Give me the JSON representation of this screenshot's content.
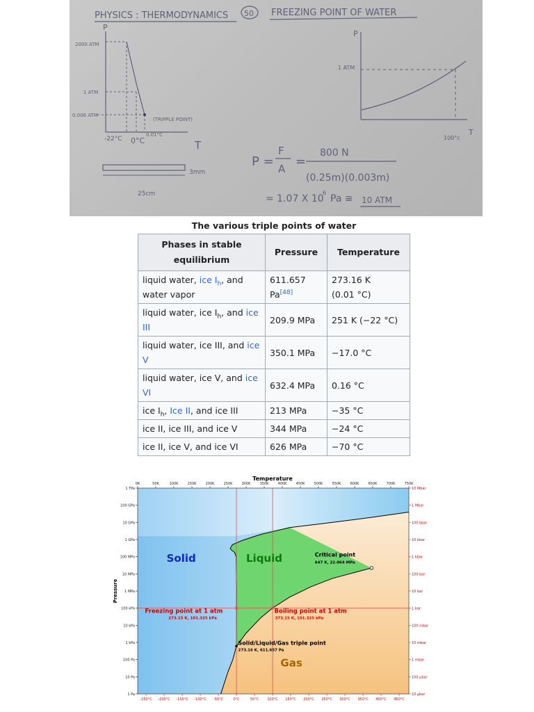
{
  "board": {
    "title": "PHYSICS : THERMODYNAMICS",
    "circled_number": "50",
    "subtitle": "FREEZING POINT OF WATER",
    "left_graph": {
      "p_axis": "P",
      "t_axis": "T",
      "y_labels": [
        "2000 ATM",
        "1 ATM",
        "0.006 ATM"
      ],
      "x_labels": [
        "-22°C",
        "0°C",
        "0.01°C"
      ],
      "triple_point_note": "(TRIPPLE POINT)"
    },
    "right_graph": {
      "p_axis": "P",
      "t_axis": "T",
      "y_label": "1 ATM",
      "x_label": "100°c"
    },
    "blade_thickness": "3mm",
    "blade_length": "25cm",
    "equation_line1_lhs": "P =",
    "equation_F": "F",
    "equation_A": "A",
    "equation_num": "800 N",
    "equation_den": "(0.25m)(0.003m)",
    "equation_result": "= 1.07 X 10",
    "equation_exp": "6",
    "equation_unit": "Pa ≅",
    "equation_atm": "10 ATM"
  },
  "table": {
    "caption": "The various triple points of water",
    "headers": [
      "Phases in stable equilibrium",
      "Pressure",
      "Temperature"
    ],
    "rows": [
      {
        "phases": "liquid water, ice Ih, and water vapor",
        "pressure": "611.657 Pa[48]",
        "temperature": "273.16 K (0.01 °C)"
      },
      {
        "phases": "liquid water, ice Ih, and ice III",
        "pressure": "209.9 MPa",
        "temperature": "251 K (−22 °C)"
      },
      {
        "phases": "liquid water, ice III, and ice V",
        "pressure": "350.1 MPa",
        "temperature": "−17.0 °C"
      },
      {
        "phases": "liquid water, ice V, and ice VI",
        "pressure": "632.4 MPa",
        "temperature": "0.16 °C"
      },
      {
        "phases": "ice Ih, Ice II, and ice III",
        "pressure": "213 MPa",
        "temperature": "−35 °C"
      },
      {
        "phases": "ice II, ice III, and ice V",
        "pressure": "344 MPa",
        "temperature": "−24 °C"
      },
      {
        "phases": "ice II, ice V, and ice VI",
        "pressure": "626 MPa",
        "temperature": "−70 °C"
      }
    ],
    "cell_parts": {
      "r0": {
        "a": "liquid water, ",
        "b": "ice I",
        "sub": "h",
        "c": ", and water vapor",
        "p": "611.657 Pa",
        "ref": "[48]",
        "t1": "273.16 K",
        "t2": "(0.01 °C)"
      },
      "r1": {
        "a": "liquid water, ice I",
        "sub": "h",
        "c": ", and ",
        "d": "ice III"
      },
      "r2": {
        "a": "liquid water, ice III, and ",
        "d": "ice V"
      },
      "r3": {
        "a": "liquid water, ice V, and ",
        "d": "ice VI"
      },
      "r4": {
        "a": "ice I",
        "sub": "h",
        "c": ", ",
        "d": "Ice II",
        "e": ", and ice III"
      }
    }
  },
  "chart_data": {
    "type": "area",
    "title": "Temperature",
    "ylabel": "Pressure",
    "x_top_ticks": [
      "0K",
      "50K",
      "100K",
      "150K",
      "200K",
      "250K",
      "300K",
      "350K",
      "400K",
      "450K",
      "500K",
      "550K",
      "600K",
      "650K",
      "700K",
      "750K"
    ],
    "x_bottom_ticks": [
      "-250°C",
      "-200°C",
      "-150°C",
      "-100°C",
      "-50°C",
      "0°C",
      "50°C",
      "100°C",
      "150°C",
      "200°C",
      "250°C",
      "300°C",
      "350°C",
      "400°C",
      "450°C"
    ],
    "y_left_ticks": [
      "1 TPa",
      "100 GPa",
      "10 GPa",
      "1 GPa",
      "100 MPa",
      "10 MPa",
      "1 MPa",
      "100 kPa",
      "10 kPa",
      "1 kPa",
      "100 Pa",
      "10 Pa",
      "1 Pa"
    ],
    "y_right_ticks": [
      "10 Mbar",
      "1 Mbar",
      "100 kbar",
      "10 kbar",
      "1 kbar",
      "100 bar",
      "10 bar",
      "1 bar",
      "100 mbar",
      "10 mbar",
      "1 mbar",
      "100 μbar",
      "10 μbar"
    ],
    "xlim_K": [
      0,
      750
    ],
    "ylim_log10_Pa": [
      0,
      12
    ],
    "y_scale": "log",
    "regions": [
      "Solid",
      "Liquid",
      "Gas"
    ],
    "region_colors": {
      "Solid": "#8cc8f0",
      "Liquid": "#6fd66f",
      "Gas": "#f7c98f"
    },
    "points": [
      {
        "name": "Critical point",
        "label": "647 K, 22.064 MPa",
        "T_K": 647,
        "P_Pa": 22064000
      },
      {
        "name": "Freezing point at 1 atm",
        "label": "273.15 K, 101.325 kPa",
        "T_K": 273.15,
        "P_Pa": 101325
      },
      {
        "name": "Boiling point at 1 atm",
        "label": "373.15 K, 101.325 kPa",
        "T_K": 373.15,
        "P_Pa": 101325
      },
      {
        "name": "Solid/Liquid/Gas triple point",
        "label": "273.16 K, 611.657 Pa",
        "T_K": 273.16,
        "P_Pa": 611.657
      }
    ],
    "reference_lines": {
      "T_K": [
        273.15,
        373.15
      ],
      "P_Pa": [
        101325
      ]
    },
    "boundaries": {
      "sublimation": [
        [
          230,
          1
        ],
        [
          250,
          20
        ],
        [
          263,
          100
        ],
        [
          273.16,
          611.657
        ]
      ],
      "vaporization": [
        [
          273.16,
          611.657
        ],
        [
          300,
          3500
        ],
        [
          340,
          27000
        ],
        [
          373.15,
          101325
        ],
        [
          420,
          440000
        ],
        [
          480,
          1800000
        ],
        [
          540,
          5500000
        ],
        [
          600,
          12000000
        ],
        [
          647,
          22064000
        ]
      ],
      "melting": [
        [
          273.16,
          611.657
        ],
        [
          273.5,
          1000000
        ],
        [
          272.5,
          100000000
        ],
        [
          268,
          180000000
        ],
        [
          260,
          240000000
        ],
        [
          256,
          300000000
        ],
        [
          262,
          500000000
        ],
        [
          290,
          900000000
        ],
        [
          340,
          2000000000
        ],
        [
          420,
          5000000000
        ],
        [
          520,
          9000000000
        ],
        [
          650,
          20000000000
        ],
        [
          750,
          40000000000
        ]
      ]
    }
  }
}
